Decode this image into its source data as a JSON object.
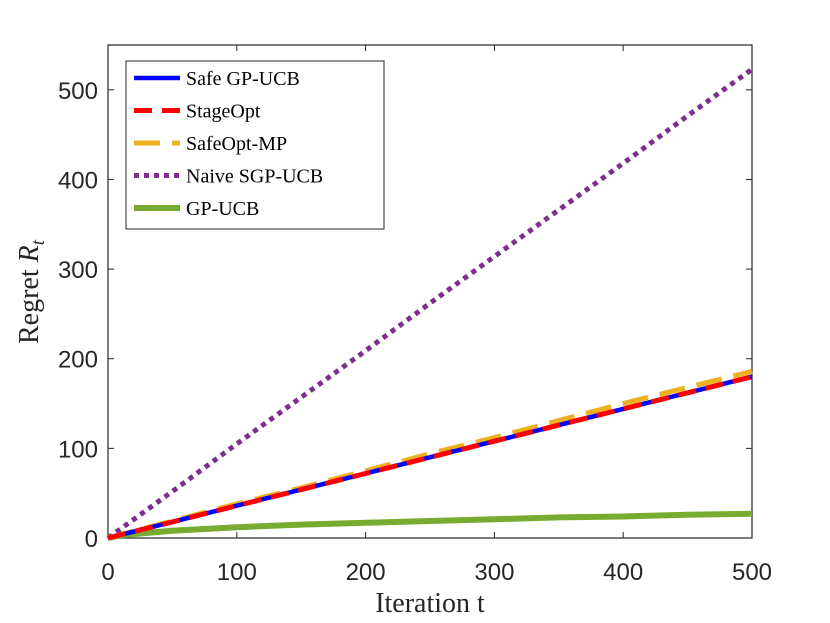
{
  "chart_data": {
    "type": "line",
    "title": "",
    "xlabel": "Iteration t",
    "ylabel": "Regret R_t",
    "ylabel_main": "Regret ",
    "ylabel_symbol": "R",
    "ylabel_sub": "t",
    "xlim": [
      0,
      500
    ],
    "ylim": [
      0,
      550
    ],
    "xticks": [
      0,
      100,
      200,
      300,
      400,
      500
    ],
    "yticks": [
      0,
      100,
      200,
      300,
      400,
      500
    ],
    "xtick_labels": [
      "0",
      "100",
      "200",
      "300",
      "400",
      "500"
    ],
    "ytick_labels": [
      "0",
      "100",
      "200",
      "300",
      "400",
      "500"
    ],
    "grid": false,
    "legend_position": "top-left",
    "series": [
      {
        "name": "Safe GP-UCB",
        "color": "#0000ff",
        "style": "solid",
        "x": [
          0,
          50,
          100,
          150,
          200,
          250,
          300,
          350,
          400,
          450,
          500
        ],
        "values": [
          0,
          18,
          36,
          54,
          72,
          90,
          108,
          126,
          144,
          162,
          180
        ]
      },
      {
        "name": "StageOpt",
        "color": "#ff0000",
        "style": "dashed",
        "x": [
          0,
          50,
          100,
          150,
          200,
          250,
          300,
          350,
          400,
          450,
          500
        ],
        "values": [
          0,
          18,
          36,
          54,
          72,
          90,
          108,
          126,
          144,
          162,
          180
        ]
      },
      {
        "name": "SafeOpt-MP",
        "color": "#edb120",
        "style": "longdash",
        "x": [
          0,
          50,
          100,
          150,
          200,
          250,
          300,
          350,
          400,
          450,
          500
        ],
        "values": [
          0,
          19,
          38,
          56,
          75,
          94,
          112,
          131,
          150,
          168,
          186
        ]
      },
      {
        "name": "Naive SGP-UCB",
        "color": "#7e2f8e",
        "style": "dotted",
        "x": [
          0,
          50,
          100,
          150,
          200,
          250,
          300,
          350,
          400,
          450,
          500
        ],
        "values": [
          0,
          52,
          105,
          157,
          209,
          262,
          314,
          366,
          418,
          471,
          523
        ]
      },
      {
        "name": "GP-UCB",
        "color": "#77ac30",
        "style": "solid-thick",
        "x": [
          0,
          10,
          25,
          50,
          100,
          150,
          200,
          250,
          300,
          350,
          400,
          450,
          500
        ],
        "values": [
          0,
          3,
          5,
          8,
          12,
          15,
          17,
          19,
          21,
          23,
          24,
          26,
          27
        ]
      }
    ]
  }
}
